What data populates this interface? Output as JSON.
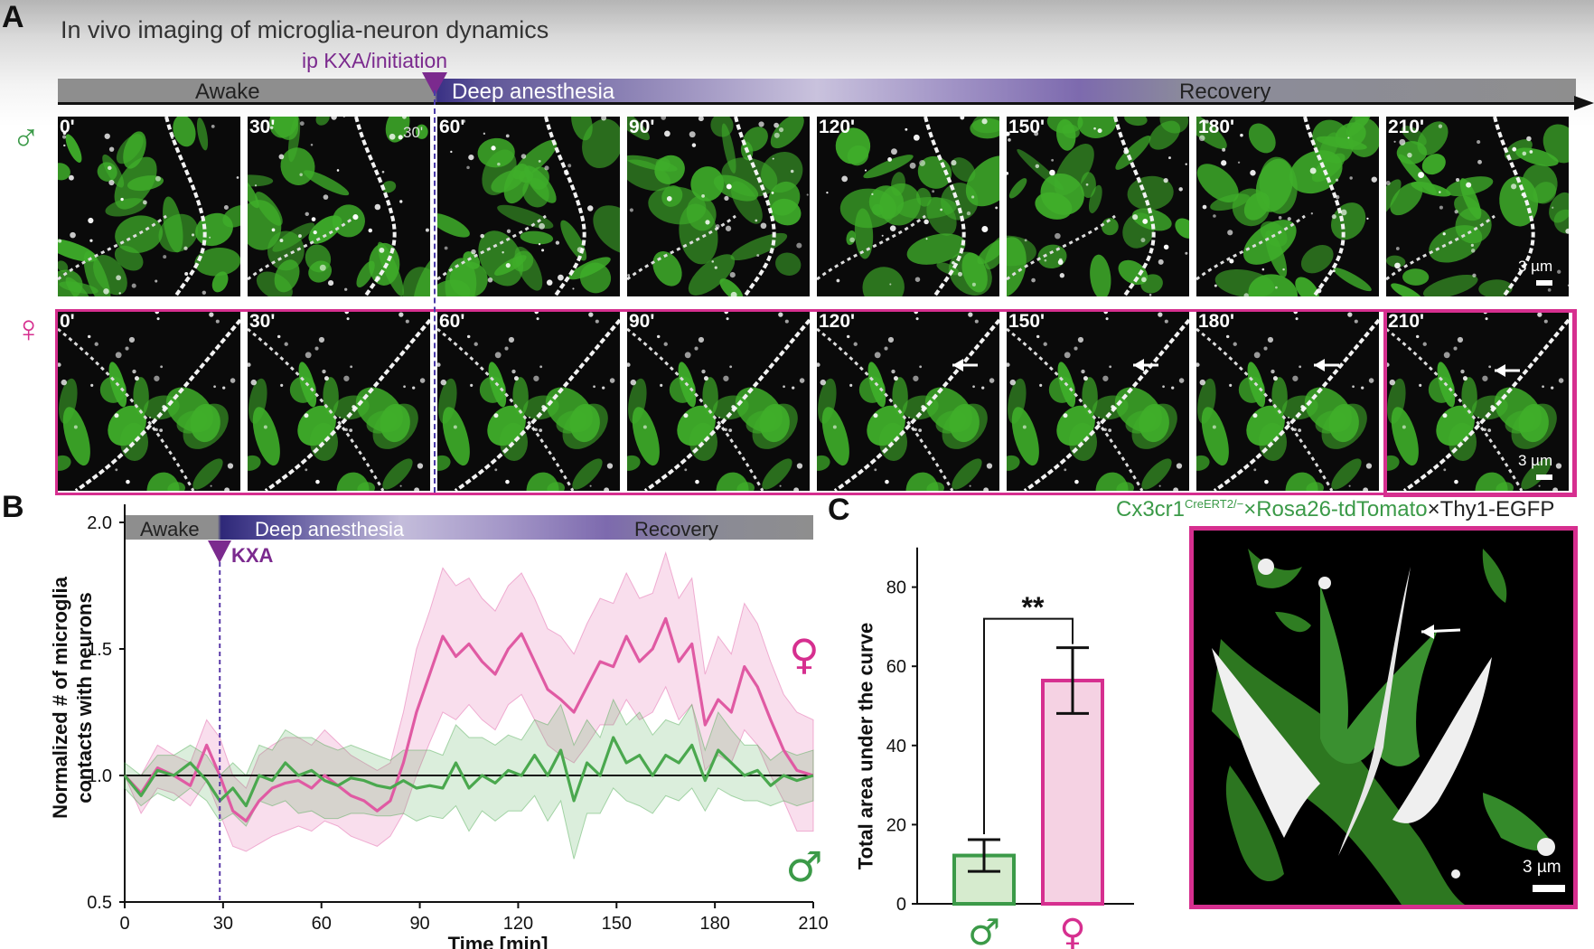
{
  "panel_labels": {
    "a": "A",
    "b": "B",
    "c": "C"
  },
  "panel_a": {
    "title": "In vivo imaging of microglia-neuron dynamics",
    "phases": [
      "Awake",
      "Deep anesthesia",
      "Recovery"
    ],
    "injection_label": "ip KXA/initiation",
    "male_symbol": "♂",
    "female_symbol": "♀",
    "time_labels": [
      "0'",
      "30'",
      "60'",
      "90'",
      "120'",
      "150'",
      "180'",
      "210'"
    ],
    "inset_label": "30'",
    "scale_label": "3 µm",
    "colors": {
      "microglia": "#3fae2a",
      "neuron": "#ffffff",
      "female": "#d62f8f",
      "male": "#3b9a48",
      "kxa": "#7b2a8e"
    }
  },
  "panel_b": {
    "phases": [
      "Awake",
      "Deep anesthesia",
      "Recovery"
    ],
    "kxa_label": "KXA",
    "ylabel_line1": "Normalized # of microglia",
    "ylabel_line2": "contacts with neurons",
    "xlabel": "Time [min]",
    "female_symbol": "♀",
    "male_symbol": "♂"
  },
  "panel_c": {
    "ylabel": "Total area under the curve",
    "significance": "**",
    "label_cx3": "Cx3cr1",
    "label_sup": "CreERT2/−",
    "label_rosa": "×Rosa26-tdTomato",
    "label_thy": "×Thy1-EGFP",
    "scale_label": "3 µm",
    "male_symbol": "♂",
    "female_symbol": "♀"
  },
  "chart_data": [
    {
      "type": "line",
      "xlabel": "Time [min]",
      "ylabel": "Normalized # of microglia contacts with neurons",
      "xlim": [
        0,
        210
      ],
      "ylim": [
        0.5,
        2.0
      ],
      "xticks": [
        0,
        30,
        60,
        90,
        120,
        150,
        180,
        210
      ],
      "yticks": [
        0.5,
        1.0,
        1.5,
        2.0
      ],
      "reference_line": 1.0,
      "event": {
        "x": 29,
        "label": "KXA"
      },
      "x": [
        0,
        5,
        10,
        15,
        20,
        25,
        29,
        33,
        37,
        41,
        45,
        49,
        53,
        57,
        61,
        65,
        69,
        73,
        77,
        81,
        85,
        89,
        93,
        97,
        101,
        105,
        109,
        113,
        117,
        121,
        125,
        129,
        133,
        137,
        141,
        145,
        149,
        153,
        157,
        161,
        165,
        169,
        173,
        177,
        181,
        185,
        189,
        193,
        197,
        201,
        205,
        210
      ],
      "series": [
        {
          "name": "♀",
          "color": "#e05aa3",
          "values": [
            1.0,
            0.93,
            1.03,
            1.0,
            0.96,
            1.12,
            1.0,
            0.86,
            0.82,
            0.9,
            0.95,
            0.97,
            0.98,
            0.95,
            1.0,
            0.96,
            0.92,
            0.9,
            0.86,
            0.9,
            1.05,
            1.25,
            1.4,
            1.55,
            1.47,
            1.52,
            1.45,
            1.4,
            1.5,
            1.56,
            1.45,
            1.34,
            1.3,
            1.25,
            1.35,
            1.45,
            1.43,
            1.55,
            1.45,
            1.5,
            1.62,
            1.45,
            1.52,
            1.2,
            1.3,
            1.25,
            1.43,
            1.35,
            1.22,
            1.1,
            1.02,
            1.0
          ],
          "lower": [
            1.0,
            0.85,
            0.95,
            0.93,
            0.88,
            0.98,
            0.85,
            0.72,
            0.7,
            0.73,
            0.76,
            0.78,
            0.8,
            0.78,
            0.82,
            0.8,
            0.76,
            0.74,
            0.72,
            0.76,
            0.85,
            1.0,
            1.13,
            1.25,
            1.22,
            1.28,
            1.22,
            1.18,
            1.28,
            1.32,
            1.22,
            1.12,
            1.08,
            1.05,
            1.12,
            1.2,
            1.2,
            1.3,
            1.22,
            1.25,
            1.35,
            1.22,
            1.28,
            1.02,
            1.08,
            1.05,
            1.18,
            1.12,
            1.0,
            0.9,
            0.78,
            0.78
          ],
          "upper": [
            1.0,
            1.0,
            1.12,
            1.08,
            1.05,
            1.22,
            1.15,
            1.0,
            0.95,
            1.08,
            1.12,
            1.15,
            1.15,
            1.12,
            1.18,
            1.13,
            1.08,
            1.05,
            1.02,
            1.05,
            1.25,
            1.5,
            1.65,
            1.82,
            1.75,
            1.78,
            1.7,
            1.65,
            1.75,
            1.8,
            1.7,
            1.58,
            1.55,
            1.48,
            1.6,
            1.7,
            1.68,
            1.8,
            1.7,
            1.72,
            1.88,
            1.7,
            1.78,
            1.4,
            1.55,
            1.48,
            1.68,
            1.6,
            1.45,
            1.32,
            1.25,
            1.22
          ]
        },
        {
          "name": "♂",
          "color": "#4aa84e",
          "values": [
            1.0,
            0.92,
            1.02,
            1.0,
            1.05,
            0.98,
            0.9,
            0.95,
            0.88,
            1.0,
            0.98,
            1.05,
            1.0,
            1.02,
            0.98,
            0.96,
            0.99,
            0.98,
            0.96,
            0.95,
            0.98,
            0.95,
            0.96,
            0.95,
            1.05,
            0.95,
            1.0,
            0.97,
            1.02,
            1.0,
            1.08,
            1.0,
            1.1,
            0.9,
            1.05,
            1.0,
            1.15,
            1.05,
            1.08,
            1.0,
            1.08,
            1.05,
            1.12,
            0.98,
            1.1,
            1.05,
            1.0,
            1.02,
            0.96,
            1.0,
            0.98,
            1.0
          ],
          "lower": [
            0.95,
            0.88,
            0.93,
            0.9,
            0.95,
            0.9,
            0.82,
            0.85,
            0.8,
            0.9,
            0.88,
            0.9,
            0.85,
            0.86,
            0.83,
            0.83,
            0.85,
            0.85,
            0.84,
            0.84,
            0.85,
            0.82,
            0.84,
            0.83,
            0.88,
            0.78,
            0.86,
            0.82,
            0.86,
            0.86,
            0.92,
            0.82,
            0.9,
            0.67,
            0.85,
            0.85,
            0.95,
            0.9,
            0.88,
            0.85,
            0.92,
            0.9,
            0.95,
            0.86,
            0.95,
            0.92,
            0.9,
            0.9,
            0.88,
            0.9,
            0.88,
            0.9
          ],
          "upper": [
            1.05,
            1.0,
            1.08,
            1.08,
            1.12,
            1.08,
            1.0,
            1.05,
            1.0,
            1.12,
            1.1,
            1.18,
            1.15,
            1.15,
            1.12,
            1.1,
            1.12,
            1.1,
            1.08,
            1.06,
            1.1,
            1.1,
            1.1,
            1.08,
            1.2,
            1.15,
            1.15,
            1.12,
            1.16,
            1.14,
            1.22,
            1.2,
            1.28,
            1.12,
            1.22,
            1.15,
            1.3,
            1.2,
            1.25,
            1.16,
            1.22,
            1.2,
            1.28,
            1.1,
            1.25,
            1.18,
            1.12,
            1.12,
            1.06,
            1.1,
            1.08,
            1.1
          ]
        }
      ]
    },
    {
      "type": "bar",
      "ylabel": "Total area under the curve",
      "ylim": [
        0,
        90
      ],
      "yticks": [
        0,
        20,
        40,
        60,
        80
      ],
      "categories": [
        "♂",
        "♀"
      ],
      "values": [
        12.2,
        56.4
      ],
      "error": [
        4.0,
        8.3
      ],
      "colors": [
        "#3b9a48",
        "#d62f8f"
      ],
      "fill_colors": [
        "#d6ebce",
        "#f5d2e3"
      ],
      "significance": "**"
    }
  ]
}
